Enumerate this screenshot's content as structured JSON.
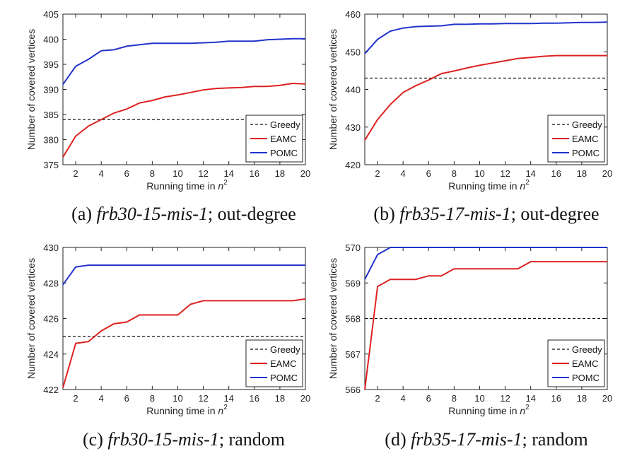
{
  "chart_data": [
    {
      "type": "line",
      "xlabel": "Running time in",
      "xlabel_math": "n",
      "xlabel_sup": "2",
      "ylabel": "Number of covered vertices",
      "xlim": [
        1,
        20
      ],
      "ylim": [
        375,
        405
      ],
      "xticks": [
        2,
        4,
        6,
        8,
        10,
        12,
        14,
        16,
        18,
        20
      ],
      "yticks": [
        375,
        380,
        385,
        390,
        395,
        400,
        405
      ],
      "legend": "bottom-right",
      "caption": {
        "label": "(a) ",
        "instance": "frb30-15-mis-1",
        "rest": "; out-degree"
      },
      "series": [
        {
          "name": "Greedy",
          "color": "#111111",
          "style": "dashed",
          "x": [
            1,
            20
          ],
          "values": [
            384,
            384
          ]
        },
        {
          "name": "EAMC",
          "color": "#dd2222",
          "style": "solid",
          "x": [
            1,
            2,
            3,
            4,
            5,
            6,
            7,
            8,
            9,
            10,
            11,
            12,
            13,
            14,
            15,
            16,
            17,
            18,
            19,
            20
          ],
          "values": [
            376.5,
            380.7,
            382.7,
            384.0,
            385.3,
            386.1,
            387.3,
            387.8,
            388.5,
            388.9,
            389.4,
            389.9,
            390.2,
            390.3,
            390.4,
            390.6,
            390.6,
            390.8,
            391.2,
            391.1
          ]
        },
        {
          "name": "POMC",
          "color": "#2233cc",
          "style": "solid",
          "x": [
            1,
            2,
            3,
            4,
            5,
            6,
            7,
            8,
            9,
            10,
            11,
            12,
            13,
            14,
            15,
            16,
            17,
            18,
            19,
            20
          ],
          "values": [
            391.0,
            394.6,
            396.0,
            397.7,
            397.9,
            398.6,
            398.9,
            399.2,
            399.2,
            399.2,
            399.2,
            399.3,
            399.4,
            399.6,
            399.6,
            399.6,
            399.9,
            400.0,
            400.1,
            400.1
          ]
        }
      ]
    },
    {
      "type": "line",
      "xlabel": "Running time in",
      "xlabel_math": "n",
      "xlabel_sup": "2",
      "ylabel": "Number of covered vertices",
      "xlim": [
        1,
        20
      ],
      "ylim": [
        420,
        460
      ],
      "xticks": [
        2,
        4,
        6,
        8,
        10,
        12,
        14,
        16,
        18,
        20
      ],
      "yticks": [
        420,
        430,
        440,
        450,
        460
      ],
      "legend": "bottom-right",
      "caption": {
        "label": "(b) ",
        "instance": "frb35-17-mis-1",
        "rest": "; out-degree"
      },
      "series": [
        {
          "name": "Greedy",
          "color": "#111111",
          "style": "dashed",
          "x": [
            1,
            20
          ],
          "values": [
            443,
            443
          ]
        },
        {
          "name": "EAMC",
          "color": "#dd2222",
          "style": "solid",
          "x": [
            1,
            2,
            3,
            4,
            5,
            6,
            7,
            8,
            9,
            10,
            11,
            12,
            13,
            14,
            15,
            16,
            17,
            18,
            19,
            20
          ],
          "values": [
            426.5,
            432.0,
            436.0,
            439.2,
            441.0,
            442.5,
            444.2,
            444.9,
            445.7,
            446.4,
            447.0,
            447.6,
            448.2,
            448.5,
            448.8,
            449.0,
            449.0,
            449.0,
            449.0,
            449.0
          ]
        },
        {
          "name": "POMC",
          "color": "#2233cc",
          "style": "solid",
          "x": [
            1,
            2,
            3,
            4,
            5,
            6,
            7,
            8,
            9,
            10,
            11,
            12,
            13,
            14,
            15,
            16,
            17,
            18,
            19,
            20
          ],
          "values": [
            449.5,
            453.3,
            455.5,
            456.3,
            456.7,
            456.8,
            456.9,
            457.3,
            457.3,
            457.4,
            457.4,
            457.5,
            457.5,
            457.5,
            457.6,
            457.6,
            457.7,
            457.8,
            457.8,
            457.9
          ]
        }
      ]
    },
    {
      "type": "line",
      "xlabel": "Running time in",
      "xlabel_math": "n",
      "xlabel_sup": "2",
      "ylabel": "Number of covered vertices",
      "xlim": [
        1,
        20
      ],
      "ylim": [
        422,
        430
      ],
      "xticks": [
        2,
        4,
        6,
        8,
        10,
        12,
        14,
        16,
        18,
        20
      ],
      "yticks": [
        422,
        424,
        426,
        428,
        430
      ],
      "legend": "bottom-right",
      "caption": {
        "label": "(c) ",
        "instance": "frb30-15-mis-1",
        "rest": "; random"
      },
      "series": [
        {
          "name": "Greedy",
          "color": "#111111",
          "style": "dashed",
          "x": [
            1,
            20
          ],
          "values": [
            425,
            425
          ]
        },
        {
          "name": "EAMC",
          "color": "#dd2222",
          "style": "solid",
          "x": [
            1,
            2,
            3,
            4,
            5,
            6,
            7,
            8,
            9,
            10,
            11,
            12,
            13,
            14,
            15,
            16,
            17,
            18,
            19,
            20
          ],
          "values": [
            422.1,
            424.6,
            424.7,
            425.3,
            425.7,
            425.8,
            426.2,
            426.2,
            426.2,
            426.2,
            426.8,
            427.0,
            427.0,
            427.0,
            427.0,
            427.0,
            427.0,
            427.0,
            427.0,
            427.1
          ]
        },
        {
          "name": "POMC",
          "color": "#2233cc",
          "style": "solid",
          "x": [
            1,
            2,
            3,
            4,
            5,
            6,
            7,
            8,
            9,
            10,
            11,
            12,
            13,
            14,
            15,
            16,
            17,
            18,
            19,
            20
          ],
          "values": [
            427.9,
            428.9,
            429.0,
            429.0,
            429.0,
            429.0,
            429.0,
            429.0,
            429.0,
            429.0,
            429.0,
            429.0,
            429.0,
            429.0,
            429.0,
            429.0,
            429.0,
            429.0,
            429.0,
            429.0
          ]
        }
      ]
    },
    {
      "type": "line",
      "xlabel": "Running time in",
      "xlabel_math": "n",
      "xlabel_sup": "2",
      "ylabel": "Number of covered vertices",
      "xlim": [
        1,
        20
      ],
      "ylim": [
        566,
        570
      ],
      "xticks": [
        2,
        4,
        6,
        8,
        10,
        12,
        14,
        16,
        18,
        20
      ],
      "yticks": [
        566,
        567,
        568,
        569,
        570
      ],
      "legend": "bottom-right",
      "caption": {
        "label": "(d) ",
        "instance": "frb35-17-mis-1",
        "rest": "; random"
      },
      "series": [
        {
          "name": "Greedy",
          "color": "#111111",
          "style": "dashed",
          "x": [
            1,
            20
          ],
          "values": [
            568,
            568
          ]
        },
        {
          "name": "EAMC",
          "color": "#dd2222",
          "style": "solid",
          "x": [
            1,
            2,
            3,
            4,
            5,
            6,
            7,
            8,
            9,
            10,
            11,
            12,
            13,
            14,
            15,
            16,
            17,
            18,
            19,
            20
          ],
          "values": [
            566.0,
            568.9,
            569.1,
            569.1,
            569.1,
            569.2,
            569.2,
            569.4,
            569.4,
            569.4,
            569.4,
            569.4,
            569.4,
            569.6,
            569.6,
            569.6,
            569.6,
            569.6,
            569.6,
            569.6
          ]
        },
        {
          "name": "POMC",
          "color": "#2233cc",
          "style": "solid",
          "x": [
            1,
            2,
            3,
            4,
            5,
            6,
            7,
            8,
            9,
            10,
            11,
            12,
            13,
            14,
            15,
            16,
            17,
            18,
            19,
            20
          ],
          "values": [
            569.1,
            569.8,
            570.0,
            570.0,
            570.0,
            570.0,
            570.0,
            570.0,
            570.0,
            570.0,
            570.0,
            570.0,
            570.0,
            570.0,
            570.0,
            570.0,
            570.0,
            570.0,
            570.0,
            570.0
          ]
        }
      ]
    }
  ]
}
